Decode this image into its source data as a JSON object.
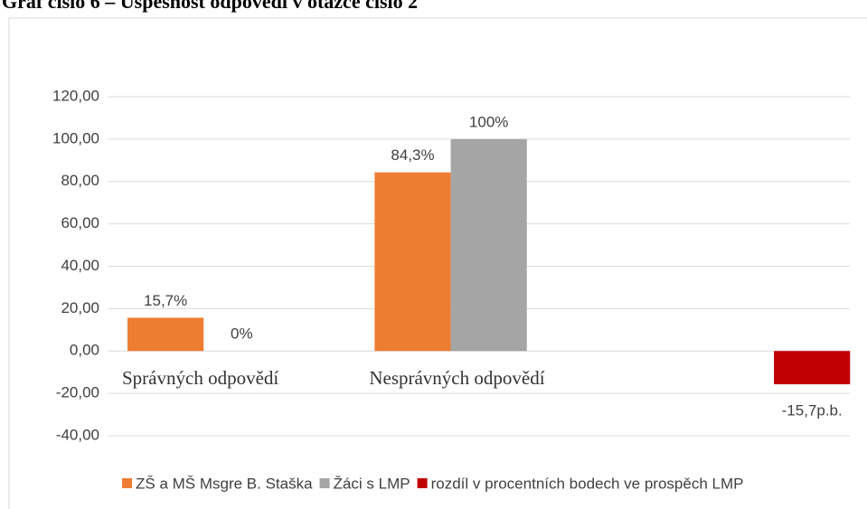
{
  "chart_data": {
    "type": "bar",
    "title": "Graf číslo 6 – Úspěšnost odpovědí v otázce číslo 2",
    "categories": [
      "Správných odpovědí",
      "Nesprávných odpovědí",
      null
    ],
    "series": [
      {
        "name": "ZŠ a MŠ Msgre B. Staška",
        "color": "#ed7d31",
        "values": [
          15.7,
          84.3,
          null
        ],
        "value_labels": [
          "15,7%",
          "84,3%",
          null
        ]
      },
      {
        "name": "Žáci s LMP",
        "color": "#a5a5a5",
        "values": [
          0,
          100,
          null
        ],
        "value_labels": [
          "0%",
          "100%",
          null
        ]
      },
      {
        "name": "rozdíl v procentních bodech ve prospěch LMP",
        "color": "#c00000",
        "values": [
          null,
          null,
          -15.7
        ],
        "value_labels": [
          null,
          null,
          "-15,7p.b."
        ]
      }
    ],
    "ylim": [
      -40,
      120
    ],
    "yticks": [
      {
        "value": -40,
        "label": "-40,00"
      },
      {
        "value": -20,
        "label": "-20,00"
      },
      {
        "value": 0,
        "label": "0,00"
      },
      {
        "value": 20,
        "label": "20,00"
      },
      {
        "value": 40,
        "label": "40,00"
      },
      {
        "value": 60,
        "label": "60,00"
      },
      {
        "value": 80,
        "label": "80,00"
      },
      {
        "value": 100,
        "label": "100,00"
      },
      {
        "value": 120,
        "label": "120,00"
      }
    ],
    "grid": true,
    "legend": "bottom"
  }
}
